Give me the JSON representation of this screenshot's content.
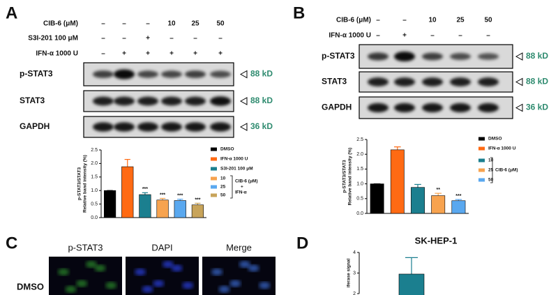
{
  "panels": {
    "A": {
      "label": "A",
      "treatments": [
        {
          "name": "CIB-6 (μM)",
          "values": [
            "–",
            "–",
            "–",
            "10",
            "25",
            "50"
          ]
        },
        {
          "name": "S3I-201 100 μM",
          "values": [
            "–",
            "–",
            "+",
            "–",
            "–",
            "–"
          ]
        },
        {
          "name": "IFN-α 1000 U",
          "values": [
            "–",
            "+",
            "+",
            "+",
            "+",
            "+"
          ]
        }
      ],
      "blots": [
        {
          "name": "p-STAT3",
          "size": "88 kD"
        },
        {
          "name": "STAT3",
          "size": "88 kD"
        },
        {
          "name": "GAPDH",
          "size": "36 kD"
        }
      ]
    },
    "B": {
      "label": "B",
      "treatments": [
        {
          "name": "CIB-6 (μM)",
          "values": [
            "–",
            "–",
            "10",
            "25",
            "50"
          ]
        },
        {
          "name": "IFN-α 1000 U",
          "values": [
            "–",
            "+",
            "–",
            "–",
            "–"
          ]
        }
      ],
      "blots": [
        {
          "name": "p-STAT3",
          "size": "88 kD"
        },
        {
          "name": "STAT3",
          "size": "88 kD"
        },
        {
          "name": "GAPDH",
          "size": "36 kD"
        }
      ]
    },
    "C": {
      "label": "C",
      "columns": [
        "p-STAT3",
        "DAPI",
        "Merge"
      ],
      "rows": [
        "DMSO"
      ]
    },
    "D": {
      "label": "D"
    }
  },
  "chart_data": [
    {
      "type": "bar",
      "y_label": [
        "p-STAT3/STAT3",
        "Relative band intensity (%)"
      ],
      "categories": [
        "DMSO",
        "IFN-α 1000 U",
        "S3I-201 100 μM",
        "10",
        "25",
        "50"
      ],
      "values": [
        1.0,
        1.88,
        0.85,
        0.65,
        0.63,
        0.47
      ],
      "errors": [
        0,
        0.27,
        0.07,
        0.06,
        0.05,
        0.06
      ],
      "colors": [
        "#000000",
        "#ff6a13",
        "#1b7f8f",
        "#f7a34f",
        "#5aa8ef",
        "#c8a45a"
      ],
      "annotations": [
        null,
        null,
        "***",
        "***",
        "***",
        "***"
      ],
      "legend_group": [
        "CIB-6 (μM)",
        "+",
        "IFN-α"
      ],
      "ylim": [
        0,
        2.5
      ],
      "yticks": [
        {
          "value": 0,
          "label": "0.0"
        },
        0.5,
        {
          "value": 1,
          "label": "1.0"
        },
        1.5,
        {
          "value": 2,
          "label": "2.0"
        },
        2.5
      ]
    },
    {
      "type": "bar",
      "y_label": [
        "p-STAT3/STAT3",
        "Relative band intensity (%)"
      ],
      "categories": [
        "DMSO",
        "IFN-α 1000 U",
        "10",
        "25",
        "50"
      ],
      "values": [
        1.0,
        2.15,
        0.88,
        0.6,
        0.43
      ],
      "errors": [
        0,
        0.1,
        0.1,
        0.08,
        0.04
      ],
      "colors": [
        "#000000",
        "#ff6a13",
        "#1b7f8f",
        "#f7a34f",
        "#5aa8ef"
      ],
      "annotations": [
        null,
        null,
        null,
        "**",
        "***"
      ],
      "legend_group": [
        "CIB-6 (μM)"
      ],
      "ylim": [
        0,
        2.5
      ],
      "yticks": [
        {
          "value": 0,
          "label": "0.0"
        },
        0.5,
        {
          "value": 1,
          "label": "1.0"
        },
        1.5,
        {
          "value": 2,
          "label": "2.0"
        },
        2.5
      ]
    },
    {
      "type": "bar",
      "title": "SK-HEP-1",
      "y_label": [
        "iferase signal"
      ],
      "values": [
        2.95
      ],
      "errors": [
        0.8
      ],
      "colors": [
        "#1b7f8f"
      ],
      "ylim": [
        2,
        4
      ],
      "yticks": [
        2,
        3,
        4
      ]
    }
  ]
}
